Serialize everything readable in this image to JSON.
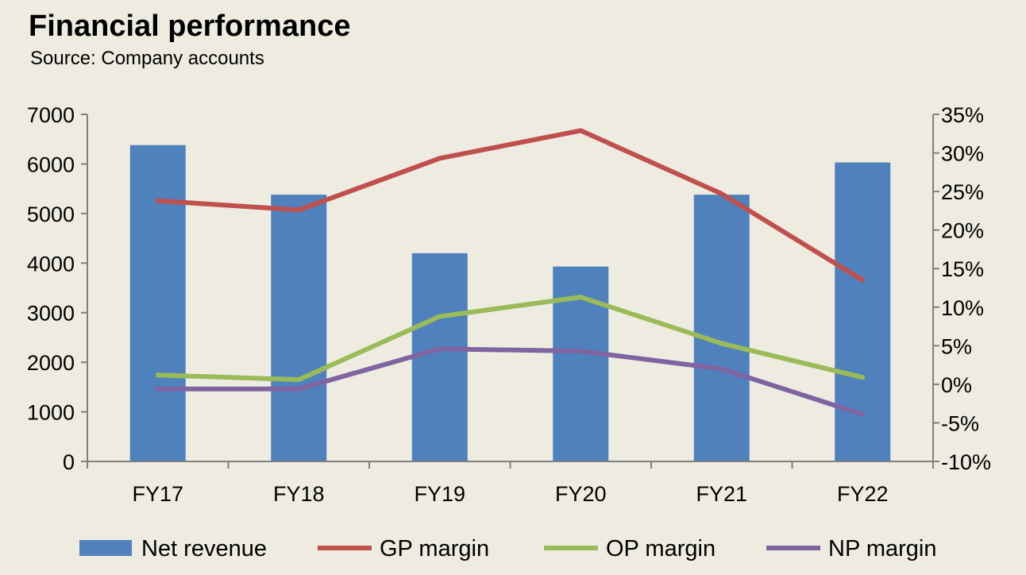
{
  "header": {
    "title": "Financial performance",
    "subtitle": "Source: Company accounts"
  },
  "chart_data": {
    "type": "bar",
    "title": "Financial performance",
    "subtitle": "Source: Company accounts",
    "categories": [
      "FY17",
      "FY18",
      "FY19",
      "FY20",
      "FY21",
      "FY22"
    ],
    "left_axis": {
      "range": [
        0,
        7000
      ],
      "ticks": [
        0,
        1000,
        2000,
        3000,
        4000,
        5000,
        6000,
        7000
      ],
      "tick_labels": [
        "0",
        "1000",
        "2000",
        "3000",
        "4000",
        "5000",
        "6000",
        "7000"
      ]
    },
    "right_axis": {
      "range": [
        -10,
        35
      ],
      "ticks": [
        -10,
        -5,
        0,
        5,
        10,
        15,
        20,
        25,
        30,
        35
      ],
      "tick_labels": [
        "-10%",
        "-5%",
        "0%",
        "5%",
        "10%",
        "15%",
        "20%",
        "25%",
        "30%",
        "35%"
      ]
    },
    "series": [
      {
        "name": "Net revenue",
        "type": "bar",
        "axis": "left",
        "color": "#4f81bd",
        "values": [
          6380,
          5380,
          4200,
          3930,
          5380,
          6030
        ]
      },
      {
        "name": "GP margin",
        "type": "line",
        "axis": "right",
        "color": "#c0504d",
        "values": [
          23.8,
          22.6,
          29.3,
          32.9,
          24.7,
          13.5
        ]
      },
      {
        "name": "OP margin",
        "type": "line",
        "axis": "right",
        "color": "#9bbb59",
        "values": [
          1.2,
          0.6,
          8.8,
          11.3,
          5.3,
          0.9
        ]
      },
      {
        "name": "NP margin",
        "type": "line",
        "axis": "right",
        "color": "#8064a2",
        "values": [
          -0.6,
          -0.6,
          4.6,
          4.3,
          2.0,
          -3.9
        ]
      }
    ],
    "grid": false,
    "legend_position": "bottom"
  }
}
